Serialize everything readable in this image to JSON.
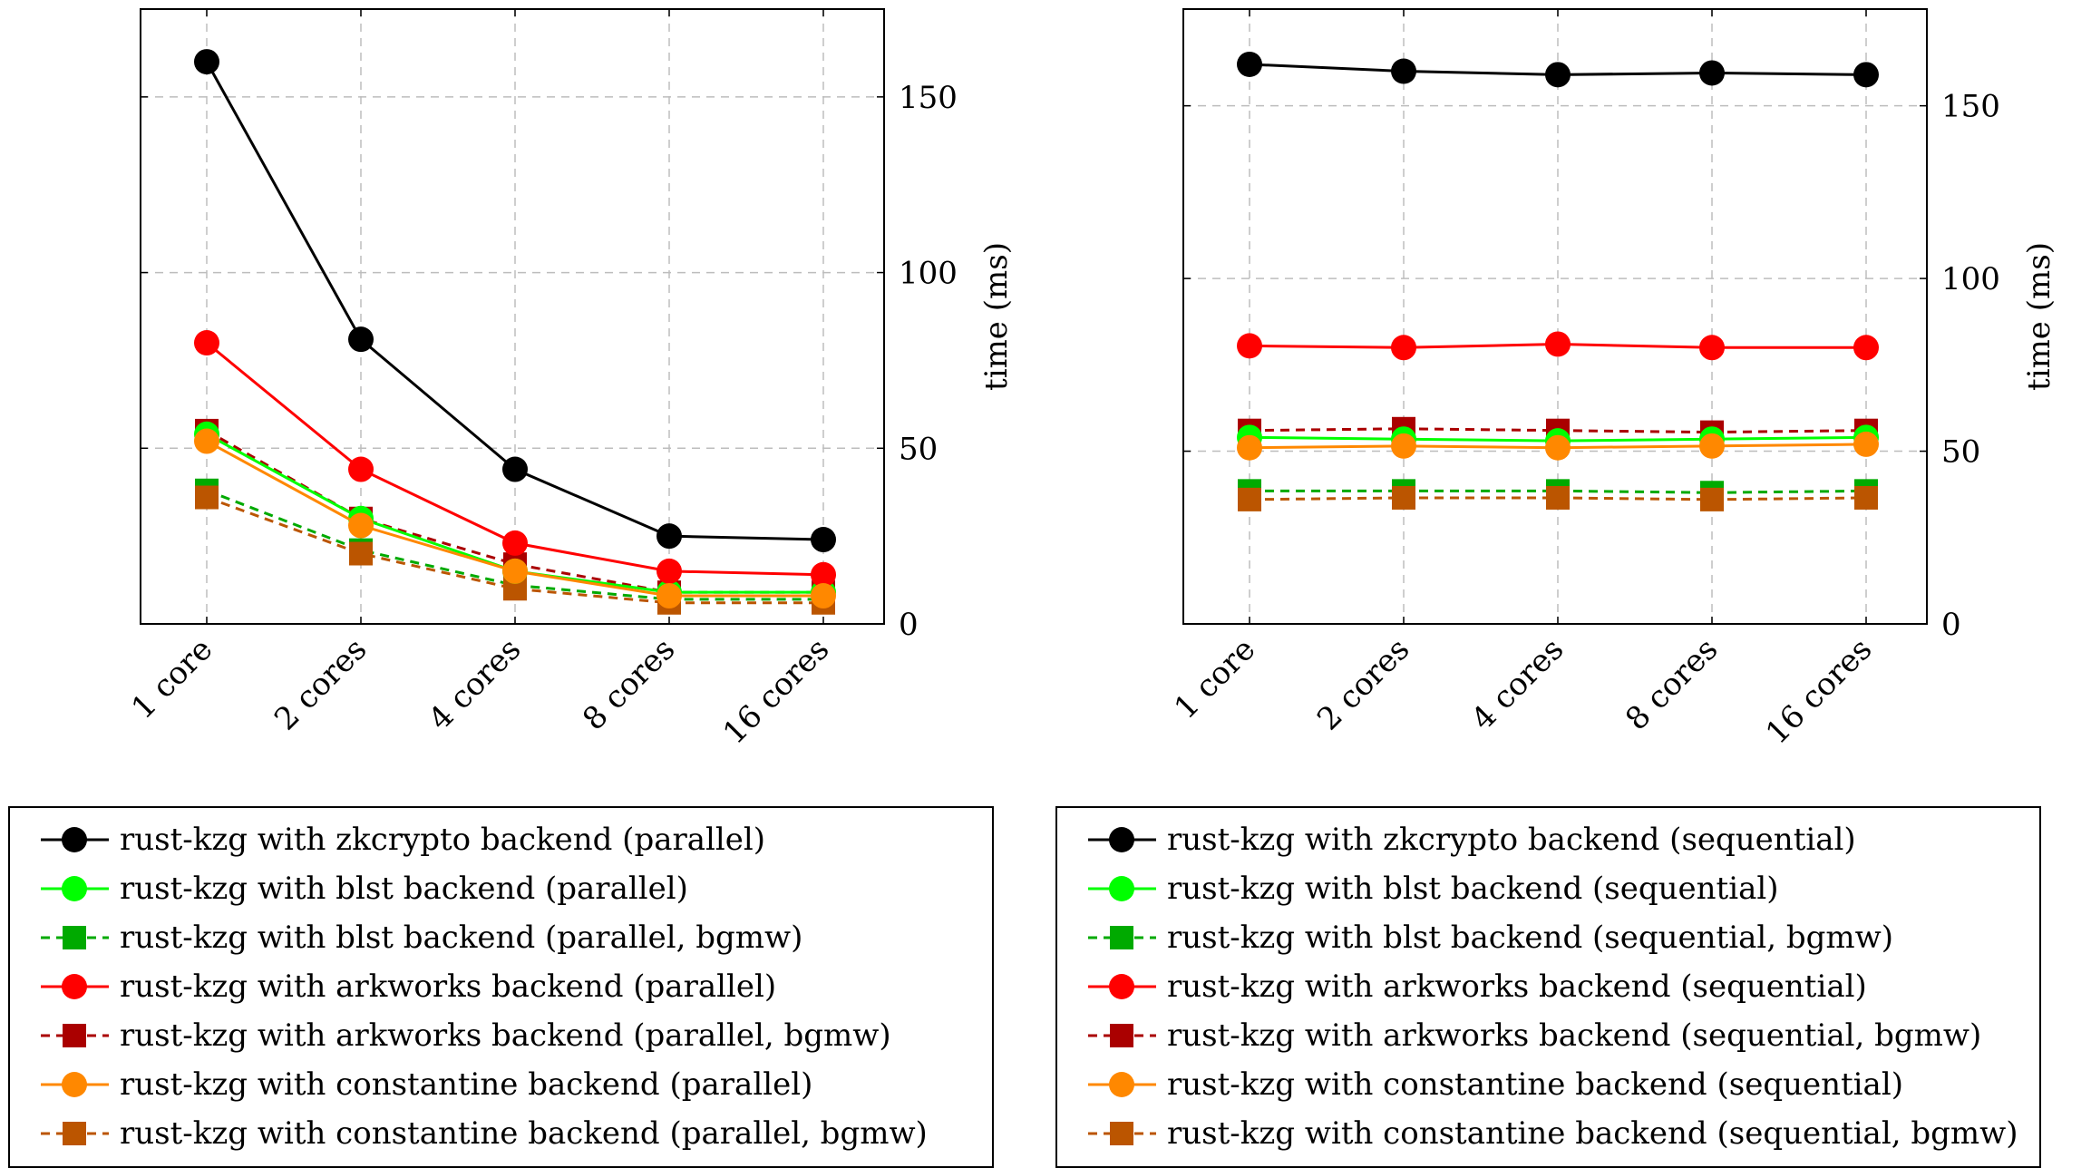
{
  "chart_data": [
    {
      "type": "line",
      "title": "",
      "xlabel": "",
      "ylabel": "time (ms)",
      "ylim": [
        0,
        175
      ],
      "yticks": [
        0,
        50,
        100,
        150
      ],
      "categories": [
        "1 core",
        "2 cores",
        "4 cores",
        "8 cores",
        "16 cores"
      ],
      "grid": true,
      "series": [
        {
          "name": "rust-kzg with zkcrypto backend (parallel)",
          "color": "#000000",
          "marker": "circle",
          "dashed": false,
          "values": [
            160,
            81,
            44,
            25,
            24
          ]
        },
        {
          "name": "rust-kzg with blst backend (parallel)",
          "color": "#00ff00",
          "marker": "circle",
          "dashed": false,
          "values": [
            54,
            30,
            15,
            9,
            9
          ]
        },
        {
          "name": "rust-kzg with blst backend (parallel, bgmw)",
          "color": "#00aa00",
          "marker": "square",
          "dashed": true,
          "values": [
            38,
            21,
            11,
            7,
            7
          ]
        },
        {
          "name": "rust-kzg with arkworks backend (parallel)",
          "color": "#ff0000",
          "marker": "circle",
          "dashed": false,
          "values": [
            80,
            44,
            23,
            15,
            14
          ]
        },
        {
          "name": "rust-kzg with arkworks backend (parallel, bgmw)",
          "color": "#aa0000",
          "marker": "square",
          "dashed": true,
          "values": [
            55,
            30,
            17,
            9,
            9
          ]
        },
        {
          "name": "rust-kzg with constantine backend (parallel)",
          "color": "#ff8800",
          "marker": "circle",
          "dashed": false,
          "values": [
            52,
            28,
            15,
            8,
            8
          ]
        },
        {
          "name": "rust-kzg with constantine backend (parallel, bgmw)",
          "color": "#bb5500",
          "marker": "square",
          "dashed": true,
          "values": [
            36,
            20,
            10,
            6,
            6
          ]
        }
      ]
    },
    {
      "type": "line",
      "title": "",
      "xlabel": "",
      "ylabel": "time (ms)",
      "ylim": [
        0,
        178
      ],
      "yticks": [
        0,
        50,
        100,
        150
      ],
      "categories": [
        "1 core",
        "2 cores",
        "4 cores",
        "8 cores",
        "16 cores"
      ],
      "grid": true,
      "series": [
        {
          "name": "rust-kzg with zkcrypto backend (sequential)",
          "color": "#000000",
          "marker": "circle",
          "dashed": false,
          "values": [
            162,
            160,
            159,
            159.5,
            159
          ]
        },
        {
          "name": "rust-kzg with blst backend (sequential)",
          "color": "#00ff00",
          "marker": "circle",
          "dashed": false,
          "values": [
            54,
            53.5,
            53,
            53.5,
            54
          ]
        },
        {
          "name": "rust-kzg with blst backend (sequential, bgmw)",
          "color": "#00aa00",
          "marker": "square",
          "dashed": true,
          "values": [
            38.5,
            38.5,
            38.5,
            38,
            38.5
          ]
        },
        {
          "name": "rust-kzg with arkworks backend (sequential)",
          "color": "#ff0000",
          "marker": "circle",
          "dashed": false,
          "values": [
            80.5,
            80,
            81,
            80,
            80
          ]
        },
        {
          "name": "rust-kzg with arkworks backend (sequential, bgmw)",
          "color": "#aa0000",
          "marker": "square",
          "dashed": true,
          "values": [
            56,
            56.5,
            56,
            55.5,
            56
          ]
        },
        {
          "name": "rust-kzg with constantine backend (sequential)",
          "color": "#ff8800",
          "marker": "circle",
          "dashed": false,
          "values": [
            51,
            51.5,
            51,
            51.5,
            52
          ]
        },
        {
          "name": "rust-kzg with constantine backend (sequential, bgmw)",
          "color": "#bb5500",
          "marker": "square",
          "dashed": true,
          "values": [
            36,
            36.5,
            36.5,
            36,
            36.5
          ]
        }
      ]
    }
  ]
}
